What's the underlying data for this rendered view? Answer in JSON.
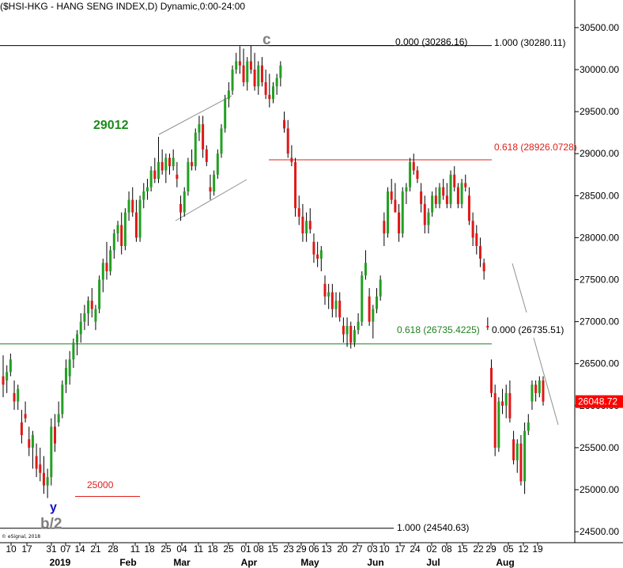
{
  "header": {
    "symbol_title": "($HSI-HKG - HANG SENG INDEX,D) Dynamic,0:00-24:00"
  },
  "credit": "© eSignal, 2018",
  "chart_data": {
    "type": "candlestick",
    "title": "($HSI-HKG - HANG SENG INDEX,D) Dynamic,0:00-24:00",
    "ylim": [
      24450,
      30600
    ],
    "y_ticks": [
      24500,
      25000,
      25500,
      26000,
      26500,
      27000,
      27500,
      28000,
      28500,
      29000,
      29500,
      30000,
      30500
    ],
    "y_tick_labels": [
      "24500.00",
      "25000.00",
      "25500.00",
      "26000.00",
      "26500.00",
      "27000.00",
      "27500.00",
      "28000.00",
      "28500.00",
      "29000.00",
      "29500.00",
      "30000.00",
      "30500.00"
    ],
    "x_tick_labels": [
      "10",
      "17",
      "31",
      "07",
      "14",
      "21",
      "28",
      "11",
      "18",
      "25",
      "04",
      "11",
      "18",
      "25",
      "01",
      "08",
      "15",
      "23",
      "29",
      "06",
      "13",
      "20",
      "27",
      "03",
      "10",
      "17",
      "24",
      "02",
      "08",
      "15",
      "22",
      "29",
      "05",
      "12",
      "19"
    ],
    "month_labels": [
      "2019",
      "Feb",
      "Mar",
      "Apr",
      "May",
      "Jun",
      "Jul",
      "Aug"
    ],
    "current_price": {
      "value": 26048.72,
      "label": "26048.72",
      "color": "#ff0000"
    },
    "fib_levels": [
      {
        "name": "top",
        "value": 30286.16,
        "left_label": "0.000 (30286.16)",
        "right_label": "1.000 (30280.11)",
        "color": "#000000"
      },
      {
        "name": "618-upper",
        "value": 28926.07,
        "label": "0.618 (28926.0728)",
        "color": "#e0201c"
      },
      {
        "name": "618-lower",
        "value": 26735.42,
        "label": "0.618 (26735.4225)",
        "right_label": "0.000 (26735.51)",
        "color": "#208020"
      },
      {
        "name": "bottom",
        "value": 24540.63,
        "label": "1.000 (24540.63)",
        "color": "#000000"
      },
      {
        "name": "25000",
        "value": 24920,
        "label": "25000",
        "color": "#e0201c"
      }
    ],
    "annotations": [
      {
        "text": "c",
        "color": "#808080"
      },
      {
        "text": "29012",
        "color": "#1a8a1a"
      },
      {
        "text": "y",
        "color": "#1010c0"
      },
      {
        "text": "b/2",
        "color": "#808080"
      }
    ],
    "colors": {
      "up": "#22a022",
      "down": "#e01818",
      "wick": "#000000"
    },
    "candles": [
      {
        "o": 26350,
        "h": 26600,
        "l": 26100,
        "c": 26250
      },
      {
        "o": 26300,
        "h": 26480,
        "l": 26150,
        "c": 26400
      },
      {
        "o": 26400,
        "h": 26620,
        "l": 26350,
        "c": 26550
      },
      {
        "o": 26150,
        "h": 26300,
        "l": 25950,
        "c": 26050
      },
      {
        "o": 26050,
        "h": 26250,
        "l": 25950,
        "c": 26200
      },
      {
        "o": 25800,
        "h": 25950,
        "l": 25550,
        "c": 25650
      },
      {
        "o": 25900,
        "h": 26050,
        "l": 25800,
        "c": 25850
      },
      {
        "o": 25600,
        "h": 25750,
        "l": 25400,
        "c": 25500
      },
      {
        "o": 25500,
        "h": 25700,
        "l": 25250,
        "c": 25650
      },
      {
        "o": 25400,
        "h": 25550,
        "l": 25150,
        "c": 25250
      },
      {
        "o": 25300,
        "h": 25500,
        "l": 25100,
        "c": 25200
      },
      {
        "o": 25200,
        "h": 25400,
        "l": 24950,
        "c": 25050
      },
      {
        "o": 25050,
        "h": 25250,
        "l": 24900,
        "c": 25150
      },
      {
        "o": 25150,
        "h": 25850,
        "l": 25050,
        "c": 25750
      },
      {
        "o": 25750,
        "h": 25900,
        "l": 25450,
        "c": 25550
      },
      {
        "o": 25800,
        "h": 26050,
        "l": 25750,
        "c": 25900
      },
      {
        "o": 25900,
        "h": 26300,
        "l": 25850,
        "c": 26250
      },
      {
        "o": 26250,
        "h": 26550,
        "l": 26150,
        "c": 26450
      },
      {
        "o": 26350,
        "h": 26650,
        "l": 26250,
        "c": 26550
      },
      {
        "o": 26550,
        "h": 26800,
        "l": 26450,
        "c": 26750
      },
      {
        "o": 26750,
        "h": 26900,
        "l": 26600,
        "c": 26850
      },
      {
        "o": 26850,
        "h": 27100,
        "l": 26750,
        "c": 27000
      },
      {
        "o": 27000,
        "h": 27200,
        "l": 26900,
        "c": 27100
      },
      {
        "o": 27100,
        "h": 27300,
        "l": 26950,
        "c": 27250
      },
      {
        "o": 27250,
        "h": 27400,
        "l": 27050,
        "c": 27150
      },
      {
        "o": 27000,
        "h": 27200,
        "l": 26900,
        "c": 27150
      },
      {
        "o": 27150,
        "h": 27550,
        "l": 27100,
        "c": 27500
      },
      {
        "o": 27500,
        "h": 27750,
        "l": 27350,
        "c": 27700
      },
      {
        "o": 27700,
        "h": 27950,
        "l": 27500,
        "c": 27600
      },
      {
        "o": 27600,
        "h": 27900,
        "l": 27550,
        "c": 27850
      },
      {
        "o": 27850,
        "h": 28100,
        "l": 27750,
        "c": 28050
      },
      {
        "o": 28050,
        "h": 28200,
        "l": 27950,
        "c": 28150
      },
      {
        "o": 28150,
        "h": 28300,
        "l": 27800,
        "c": 27900
      },
      {
        "o": 27900,
        "h": 28350,
        "l": 27850,
        "c": 28300
      },
      {
        "o": 28300,
        "h": 28550,
        "l": 28200,
        "c": 28450
      },
      {
        "o": 28450,
        "h": 28600,
        "l": 28250,
        "c": 28300
      },
      {
        "o": 28300,
        "h": 28450,
        "l": 27950,
        "c": 28000
      },
      {
        "o": 28000,
        "h": 28500,
        "l": 27950,
        "c": 28450
      },
      {
        "o": 28450,
        "h": 28650,
        "l": 28350,
        "c": 28550
      },
      {
        "o": 28550,
        "h": 28700,
        "l": 28450,
        "c": 28600
      },
      {
        "o": 28600,
        "h": 28850,
        "l": 28550,
        "c": 28800
      },
      {
        "o": 28800,
        "h": 28950,
        "l": 28650,
        "c": 28700
      },
      {
        "o": 28700,
        "h": 29200,
        "l": 28650,
        "c": 28900
      },
      {
        "o": 28900,
        "h": 29050,
        "l": 28750,
        "c": 28800
      },
      {
        "o": 28800,
        "h": 29000,
        "l": 28650,
        "c": 28950
      },
      {
        "o": 28950,
        "h": 29000,
        "l": 28750,
        "c": 28850
      },
      {
        "o": 28850,
        "h": 29050,
        "l": 28800,
        "c": 28950
      },
      {
        "o": 28750,
        "h": 28900,
        "l": 28600,
        "c": 28700
      },
      {
        "o": 28400,
        "h": 28500,
        "l": 28200,
        "c": 28300
      },
      {
        "o": 28300,
        "h": 28600,
        "l": 28250,
        "c": 28550
      },
      {
        "o": 28550,
        "h": 28950,
        "l": 28500,
        "c": 28900
      },
      {
        "o": 28900,
        "h": 29050,
        "l": 28800,
        "c": 28850
      },
      {
        "o": 28850,
        "h": 29300,
        "l": 28800,
        "c": 29250
      },
      {
        "o": 29250,
        "h": 29450,
        "l": 29150,
        "c": 29350
      },
      {
        "o": 29350,
        "h": 29450,
        "l": 28950,
        "c": 29050
      },
      {
        "o": 29050,
        "h": 29100,
        "l": 28850,
        "c": 28900
      },
      {
        "o": 28600,
        "h": 28750,
        "l": 28450,
        "c": 28550
      },
      {
        "o": 28550,
        "h": 28800,
        "l": 28500,
        "c": 28750
      },
      {
        "o": 28750,
        "h": 29050,
        "l": 28700,
        "c": 29000
      },
      {
        "o": 29000,
        "h": 29350,
        "l": 28950,
        "c": 29300
      },
      {
        "o": 29300,
        "h": 29700,
        "l": 29250,
        "c": 29650
      },
      {
        "o": 29650,
        "h": 29850,
        "l": 29550,
        "c": 29750
      },
      {
        "o": 29750,
        "h": 30050,
        "l": 29700,
        "c": 30000
      },
      {
        "o": 30000,
        "h": 30200,
        "l": 29950,
        "c": 30100
      },
      {
        "o": 30100,
        "h": 30280,
        "l": 29950,
        "c": 30050
      },
      {
        "o": 30050,
        "h": 30250,
        "l": 29800,
        "c": 29850
      },
      {
        "o": 29850,
        "h": 30150,
        "l": 29750,
        "c": 30100
      },
      {
        "o": 30100,
        "h": 30286,
        "l": 29950,
        "c": 30000
      },
      {
        "o": 30000,
        "h": 30200,
        "l": 29750,
        "c": 29800
      },
      {
        "o": 29800,
        "h": 30100,
        "l": 29700,
        "c": 30050
      },
      {
        "o": 30050,
        "h": 30150,
        "l": 29800,
        "c": 29850
      },
      {
        "o": 29850,
        "h": 30000,
        "l": 29650,
        "c": 29700
      },
      {
        "o": 29700,
        "h": 29950,
        "l": 29550,
        "c": 29650
      },
      {
        "o": 29650,
        "h": 29850,
        "l": 29600,
        "c": 29800
      },
      {
        "o": 29800,
        "h": 29950,
        "l": 29700,
        "c": 29900
      },
      {
        "o": 29900,
        "h": 30100,
        "l": 29800,
        "c": 30050
      },
      {
        "o": 29400,
        "h": 29500,
        "l": 29250,
        "c": 29300
      },
      {
        "o": 29300,
        "h": 29400,
        "l": 28950,
        "c": 29000
      },
      {
        "o": 28950,
        "h": 29100,
        "l": 28850,
        "c": 28900
      },
      {
        "o": 28900,
        "h": 28950,
        "l": 28250,
        "c": 28350
      },
      {
        "o": 28350,
        "h": 28500,
        "l": 28150,
        "c": 28250
      },
      {
        "o": 28250,
        "h": 28400,
        "l": 27950,
        "c": 28050
      },
      {
        "o": 28050,
        "h": 28300,
        "l": 27950,
        "c": 28200
      },
      {
        "o": 28200,
        "h": 28350,
        "l": 28050,
        "c": 28100
      },
      {
        "o": 27950,
        "h": 28050,
        "l": 27700,
        "c": 27800
      },
      {
        "o": 27800,
        "h": 27950,
        "l": 27650,
        "c": 27750
      },
      {
        "o": 27750,
        "h": 27900,
        "l": 27600,
        "c": 27850
      },
      {
        "o": 27450,
        "h": 27550,
        "l": 27200,
        "c": 27300
      },
      {
        "o": 27300,
        "h": 27450,
        "l": 27150,
        "c": 27350
      },
      {
        "o": 27350,
        "h": 27450,
        "l": 27050,
        "c": 27150
      },
      {
        "o": 27150,
        "h": 27350,
        "l": 27050,
        "c": 27250
      },
      {
        "o": 27250,
        "h": 27350,
        "l": 27000,
        "c": 27050
      },
      {
        "o": 26950,
        "h": 27050,
        "l": 26750,
        "c": 26850
      },
      {
        "o": 26850,
        "h": 27050,
        "l": 26700,
        "c": 26950
      },
      {
        "o": 26950,
        "h": 27000,
        "l": 26680,
        "c": 26750
      },
      {
        "o": 26750,
        "h": 26950,
        "l": 26700,
        "c": 26900
      },
      {
        "o": 26900,
        "h": 27100,
        "l": 26850,
        "c": 27000
      },
      {
        "o": 27000,
        "h": 27600,
        "l": 26950,
        "c": 27550
      },
      {
        "o": 27550,
        "h": 27850,
        "l": 27500,
        "c": 27700
      },
      {
        "o": 27300,
        "h": 27400,
        "l": 26950,
        "c": 27000
      },
      {
        "o": 27000,
        "h": 27200,
        "l": 26800,
        "c": 27150
      },
      {
        "o": 27150,
        "h": 27400,
        "l": 27100,
        "c": 27300
      },
      {
        "o": 27300,
        "h": 27550,
        "l": 27250,
        "c": 27500
      },
      {
        "o": 28200,
        "h": 28300,
        "l": 27900,
        "c": 28050
      },
      {
        "o": 28050,
        "h": 28600,
        "l": 28000,
        "c": 28550
      },
      {
        "o": 28550,
        "h": 28700,
        "l": 28400,
        "c": 28450
      },
      {
        "o": 28450,
        "h": 28650,
        "l": 28350,
        "c": 28300
      },
      {
        "o": 28300,
        "h": 28400,
        "l": 27950,
        "c": 28050
      },
      {
        "o": 28050,
        "h": 28600,
        "l": 28000,
        "c": 28550
      },
      {
        "o": 28550,
        "h": 28650,
        "l": 28400,
        "c": 28600
      },
      {
        "o": 28600,
        "h": 28950,
        "l": 28550,
        "c": 28900
      },
      {
        "o": 28900,
        "h": 29000,
        "l": 28750,
        "c": 28800
      },
      {
        "o": 28800,
        "h": 28850,
        "l": 28650,
        "c": 28700
      },
      {
        "o": 28550,
        "h": 28650,
        "l": 28300,
        "c": 28400
      },
      {
        "o": 28400,
        "h": 28500,
        "l": 28050,
        "c": 28150
      },
      {
        "o": 28150,
        "h": 28350,
        "l": 28050,
        "c": 28300
      },
      {
        "o": 28300,
        "h": 28550,
        "l": 28250,
        "c": 28500
      },
      {
        "o": 28500,
        "h": 28600,
        "l": 28350,
        "c": 28400
      },
      {
        "o": 28400,
        "h": 28650,
        "l": 28350,
        "c": 28600
      },
      {
        "o": 28600,
        "h": 28700,
        "l": 28450,
        "c": 28500
      },
      {
        "o": 28500,
        "h": 28650,
        "l": 28350,
        "c": 28400
      },
      {
        "o": 28400,
        "h": 28800,
        "l": 28350,
        "c": 28750
      },
      {
        "o": 28750,
        "h": 28850,
        "l": 28550,
        "c": 28600
      },
      {
        "o": 28600,
        "h": 28650,
        "l": 28350,
        "c": 28400
      },
      {
        "o": 28400,
        "h": 28700,
        "l": 28350,
        "c": 28650
      },
      {
        "o": 28650,
        "h": 28750,
        "l": 28550,
        "c": 28600
      },
      {
        "o": 28500,
        "h": 28600,
        "l": 28150,
        "c": 28200
      },
      {
        "o": 28200,
        "h": 28300,
        "l": 27900,
        "c": 28000
      },
      {
        "o": 28050,
        "h": 28150,
        "l": 27800,
        "c": 27900
      },
      {
        "o": 27900,
        "h": 28000,
        "l": 27650,
        "c": 27750
      },
      {
        "o": 27700,
        "h": 27750,
        "l": 27500,
        "c": 27600
      },
      {
        "o": 26950,
        "h": 27050,
        "l": 26900,
        "c": 26930
      },
      {
        "o": 26450,
        "h": 26550,
        "l": 26100,
        "c": 26150
      },
      {
        "o": 26150,
        "h": 26250,
        "l": 25400,
        "c": 25500
      },
      {
        "o": 25500,
        "h": 26100,
        "l": 25450,
        "c": 26050
      },
      {
        "o": 26050,
        "h": 26200,
        "l": 25900,
        "c": 26000
      },
      {
        "o": 26000,
        "h": 26250,
        "l": 25850,
        "c": 26150
      },
      {
        "o": 26150,
        "h": 26300,
        "l": 25800,
        "c": 25850
      },
      {
        "o": 25600,
        "h": 25700,
        "l": 25300,
        "c": 25350
      },
      {
        "o": 25350,
        "h": 25600,
        "l": 25200,
        "c": 25550
      },
      {
        "o": 25550,
        "h": 25650,
        "l": 25050,
        "c": 25100
      },
      {
        "o": 25100,
        "h": 25800,
        "l": 24950,
        "c": 25700
      },
      {
        "o": 25700,
        "h": 25900,
        "l": 25650,
        "c": 25800
      },
      {
        "o": 26050,
        "h": 26300,
        "l": 25950,
        "c": 26250
      },
      {
        "o": 26250,
        "h": 26300,
        "l": 26050,
        "c": 26150
      },
      {
        "o": 26150,
        "h": 26350,
        "l": 26100,
        "c": 26300
      },
      {
        "o": 26300,
        "h": 26350,
        "l": 26000,
        "c": 26049
      }
    ]
  }
}
